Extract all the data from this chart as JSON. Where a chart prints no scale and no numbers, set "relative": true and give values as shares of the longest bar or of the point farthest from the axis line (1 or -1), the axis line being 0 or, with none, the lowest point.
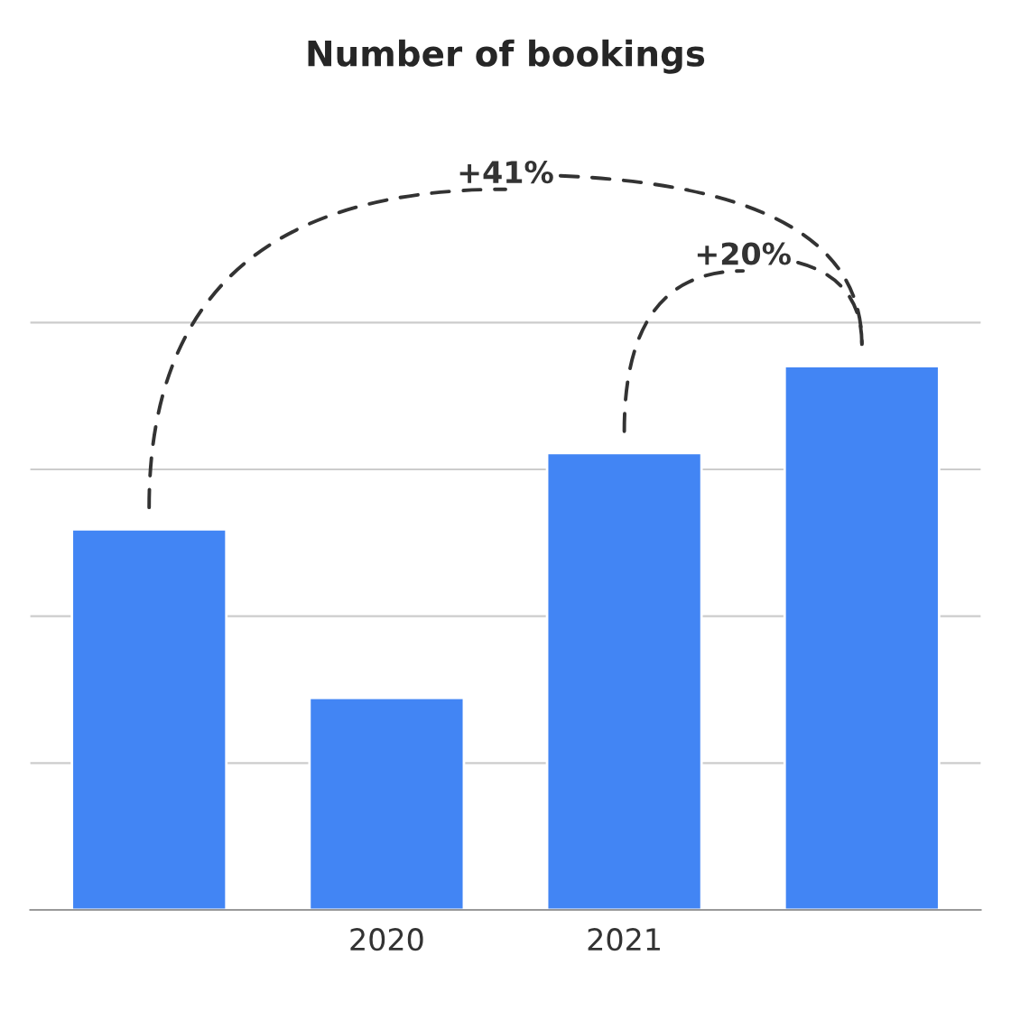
{
  "chart_data": {
    "type": "bar",
    "title": "Number of bookings",
    "relative": true,
    "categories": [
      null,
      "2020",
      "2021",
      null
    ],
    "values": [
      0.7,
      0.39,
      0.84,
      1.0
    ],
    "color": "#4285f4",
    "grid": "y",
    "annotations": [
      "+41%",
      "+20%"
    ]
  }
}
